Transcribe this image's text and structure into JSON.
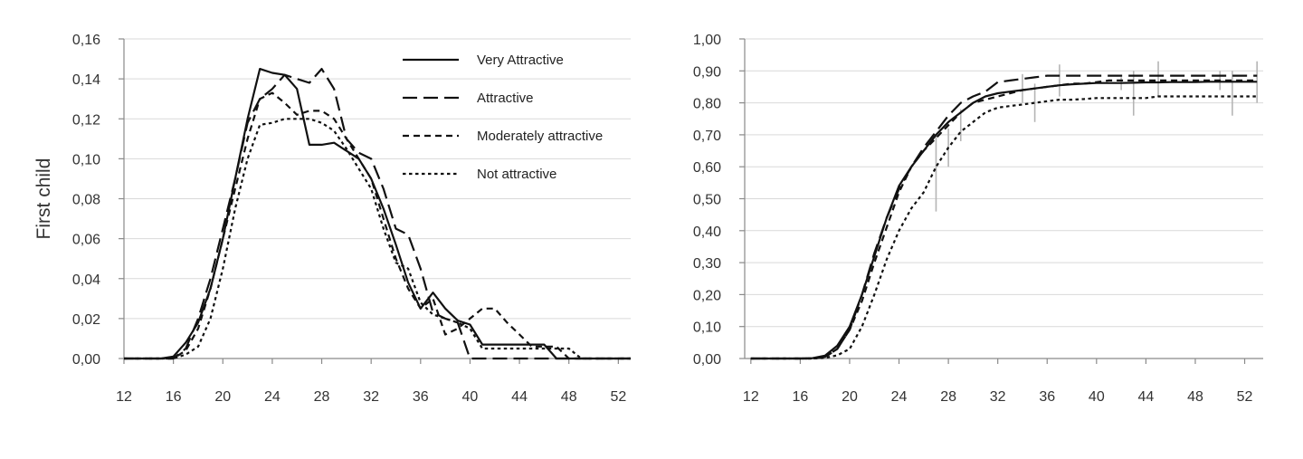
{
  "chart_data": [
    {
      "type": "line",
      "ylabel": "First child",
      "xlabel": "",
      "title": "",
      "xlim": [
        12,
        53
      ],
      "ylim": [
        0,
        0.16
      ],
      "x_ticks": [
        "12",
        "16",
        "20",
        "24",
        "28",
        "32",
        "36",
        "40",
        "44",
        "48",
        "52"
      ],
      "y_ticks": [
        "0,00",
        "0,02",
        "0,04",
        "0,06",
        "0,08",
        "0,10",
        "0,12",
        "0,14",
        "0,16"
      ],
      "grid": true,
      "legend": "top-right",
      "series": [
        {
          "name": "Very Attractive",
          "style": "solid",
          "x": [
            12,
            13,
            14,
            15,
            16,
            17,
            18,
            19,
            20,
            21,
            22,
            23,
            24,
            25,
            26,
            27,
            28,
            29,
            30,
            31,
            32,
            33,
            34,
            35,
            36,
            37,
            38,
            39,
            40,
            41,
            42,
            43,
            44,
            45,
            46,
            47,
            48,
            49,
            50,
            51,
            52,
            53
          ],
          "values": [
            0,
            0,
            0,
            0,
            0.001,
            0.008,
            0.018,
            0.035,
            0.06,
            0.09,
            0.12,
            0.145,
            0.143,
            0.142,
            0.135,
            0.107,
            0.107,
            0.108,
            0.104,
            0.1,
            0.09,
            0.075,
            0.057,
            0.038,
            0.025,
            0.033,
            0.025,
            0.019,
            0.017,
            0.007,
            0.007,
            0.007,
            0.007,
            0.007,
            0.007,
            0,
            0,
            0,
            0,
            0,
            0,
            0
          ]
        },
        {
          "name": "Attractive",
          "style": "long-dash",
          "x": [
            12,
            13,
            14,
            15,
            16,
            17,
            18,
            19,
            20,
            21,
            22,
            23,
            24,
            25,
            26,
            27,
            28,
            29,
            30,
            31,
            32,
            33,
            34,
            35,
            36,
            37,
            38,
            39,
            40,
            41,
            42,
            43,
            44,
            45,
            46,
            47,
            48,
            49,
            50,
            51,
            52,
            53
          ],
          "values": [
            0,
            0,
            0,
            0,
            0,
            0.005,
            0.02,
            0.04,
            0.065,
            0.09,
            0.118,
            0.13,
            0.135,
            0.142,
            0.14,
            0.138,
            0.145,
            0.135,
            0.11,
            0.103,
            0.1,
            0.085,
            0.065,
            0.062,
            0.045,
            0.023,
            0.02,
            0.018,
            0,
            0,
            0,
            0,
            0,
            0,
            0,
            0,
            0,
            0,
            0,
            0,
            0,
            0
          ]
        },
        {
          "name": "Moderately attractive",
          "style": "dash",
          "x": [
            12,
            13,
            14,
            15,
            16,
            17,
            18,
            19,
            20,
            21,
            22,
            23,
            24,
            25,
            26,
            27,
            28,
            29,
            30,
            31,
            32,
            33,
            34,
            35,
            36,
            37,
            38,
            39,
            40,
            41,
            42,
            43,
            44,
            45,
            46,
            47,
            48,
            49,
            50,
            51,
            52,
            53
          ],
          "values": [
            0,
            0,
            0,
            0,
            0,
            0.004,
            0.015,
            0.035,
            0.06,
            0.085,
            0.11,
            0.13,
            0.133,
            0.128,
            0.122,
            0.124,
            0.124,
            0.12,
            0.11,
            0.1,
            0.09,
            0.07,
            0.05,
            0.035,
            0.025,
            0.03,
            0.012,
            0.015,
            0.02,
            0.025,
            0.025,
            0.018,
            0.012,
            0.006,
            0.006,
            0.006,
            0,
            0,
            0,
            0,
            0,
            0
          ]
        },
        {
          "name": "Not attractive",
          "style": "dot",
          "x": [
            12,
            13,
            14,
            15,
            16,
            17,
            18,
            19,
            20,
            21,
            22,
            23,
            24,
            25,
            26,
            27,
            28,
            29,
            30,
            31,
            32,
            33,
            34,
            35,
            36,
            37,
            38,
            39,
            40,
            41,
            42,
            43,
            44,
            45,
            46,
            47,
            48,
            49,
            50,
            51,
            52,
            53
          ],
          "values": [
            0,
            0,
            0,
            0,
            0,
            0.002,
            0.006,
            0.02,
            0.045,
            0.075,
            0.1,
            0.117,
            0.118,
            0.12,
            0.12,
            0.12,
            0.118,
            0.114,
            0.105,
            0.095,
            0.085,
            0.065,
            0.048,
            0.045,
            0.028,
            0.022,
            0.02,
            0.018,
            0.015,
            0.005,
            0.005,
            0.005,
            0.005,
            0.005,
            0.005,
            0.005,
            0.005,
            0,
            0,
            0,
            0,
            0
          ]
        }
      ]
    },
    {
      "type": "line",
      "ylabel": "",
      "xlabel": "",
      "title": "",
      "xlim": [
        11.5,
        53.5
      ],
      "ylim": [
        0,
        1
      ],
      "x_ticks": [
        "12",
        "16",
        "20",
        "24",
        "28",
        "32",
        "36",
        "40",
        "44",
        "48",
        "52"
      ],
      "y_ticks": [
        "0,00",
        "0,10",
        "0,20",
        "0,30",
        "0,40",
        "0,50",
        "0,60",
        "0,70",
        "0,80",
        "0,90",
        "1,00"
      ],
      "grid": true,
      "legend": "none",
      "error_bars": {
        "x": [
          27,
          28,
          29,
          34,
          35,
          37,
          42,
          43,
          45,
          50,
          51,
          53
        ],
        "low": [
          0.46,
          0.6,
          0.68,
          0.8,
          0.74,
          0.82,
          0.84,
          0.76,
          0.82,
          0.84,
          0.76,
          0.8
        ],
        "high": [
          0.7,
          0.72,
          0.78,
          0.89,
          0.86,
          0.92,
          0.88,
          0.9,
          0.93,
          0.9,
          0.9,
          0.93
        ]
      },
      "series": [
        {
          "name": "Very Attractive",
          "style": "solid",
          "x": [
            12,
            13,
            14,
            15,
            16,
            17,
            18,
            19,
            20,
            21,
            22,
            23,
            24,
            25,
            26,
            27,
            28,
            29,
            30,
            31,
            32,
            33,
            34,
            35,
            36,
            37,
            38,
            39,
            40,
            41,
            42,
            43,
            44,
            45,
            46,
            47,
            48,
            49,
            50,
            51,
            52,
            53
          ],
          "values": [
            0,
            0,
            0,
            0,
            0,
            0.001,
            0.009,
            0.04,
            0.1,
            0.2,
            0.32,
            0.44,
            0.54,
            0.6,
            0.65,
            0.7,
            0.74,
            0.77,
            0.8,
            0.82,
            0.83,
            0.835,
            0.84,
            0.845,
            0.85,
            0.855,
            0.858,
            0.86,
            0.862,
            0.862,
            0.862,
            0.863,
            0.864,
            0.864,
            0.865,
            0.865,
            0.865,
            0.866,
            0.866,
            0.866,
            0.866,
            0.866
          ]
        },
        {
          "name": "Attractive",
          "style": "long-dash",
          "x": [
            12,
            13,
            14,
            15,
            16,
            17,
            18,
            19,
            20,
            21,
            22,
            23,
            24,
            25,
            26,
            27,
            28,
            29,
            30,
            31,
            32,
            33,
            34,
            35,
            36,
            37,
            38,
            39,
            40,
            41,
            42,
            43,
            44,
            45,
            46,
            47,
            48,
            49,
            50,
            51,
            52,
            53
          ],
          "values": [
            0,
            0,
            0,
            0,
            0,
            0,
            0.005,
            0.03,
            0.09,
            0.2,
            0.33,
            0.44,
            0.53,
            0.6,
            0.66,
            0.71,
            0.76,
            0.8,
            0.82,
            0.835,
            0.865,
            0.87,
            0.875,
            0.88,
            0.885,
            0.885,
            0.885,
            0.885,
            0.885,
            0.885,
            0.885,
            0.885,
            0.885,
            0.885,
            0.885,
            0.885,
            0.885,
            0.885,
            0.885,
            0.885,
            0.885,
            0.885
          ]
        },
        {
          "name": "Moderately attractive",
          "style": "dash",
          "x": [
            12,
            13,
            14,
            15,
            16,
            17,
            18,
            19,
            20,
            21,
            22,
            23,
            24,
            25,
            26,
            27,
            28,
            29,
            30,
            31,
            32,
            33,
            34,
            35,
            36,
            37,
            38,
            39,
            40,
            41,
            42,
            43,
            44,
            45,
            46,
            47,
            48,
            49,
            50,
            51,
            52,
            53
          ],
          "values": [
            0,
            0,
            0,
            0,
            0,
            0,
            0.004,
            0.03,
            0.09,
            0.18,
            0.3,
            0.41,
            0.52,
            0.6,
            0.65,
            0.69,
            0.73,
            0.77,
            0.8,
            0.81,
            0.82,
            0.83,
            0.84,
            0.845,
            0.85,
            0.855,
            0.86,
            0.86,
            0.865,
            0.87,
            0.87,
            0.87,
            0.87,
            0.87,
            0.87,
            0.87,
            0.87,
            0.87,
            0.87,
            0.87,
            0.87,
            0.87
          ]
        },
        {
          "name": "Not attractive",
          "style": "dot",
          "x": [
            12,
            13,
            14,
            15,
            16,
            17,
            18,
            19,
            20,
            21,
            22,
            23,
            24,
            25,
            26,
            27,
            28,
            29,
            30,
            31,
            32,
            33,
            34,
            35,
            36,
            37,
            38,
            39,
            40,
            41,
            42,
            43,
            44,
            45,
            46,
            47,
            48,
            49,
            50,
            51,
            52,
            53
          ],
          "values": [
            0,
            0,
            0,
            0,
            0,
            0,
            0.002,
            0.01,
            0.03,
            0.1,
            0.2,
            0.31,
            0.4,
            0.47,
            0.52,
            0.6,
            0.66,
            0.71,
            0.74,
            0.77,
            0.785,
            0.79,
            0.795,
            0.8,
            0.805,
            0.81,
            0.81,
            0.812,
            0.815,
            0.815,
            0.815,
            0.815,
            0.815,
            0.82,
            0.82,
            0.82,
            0.82,
            0.82,
            0.82,
            0.82,
            0.82,
            0.82
          ]
        }
      ]
    }
  ]
}
